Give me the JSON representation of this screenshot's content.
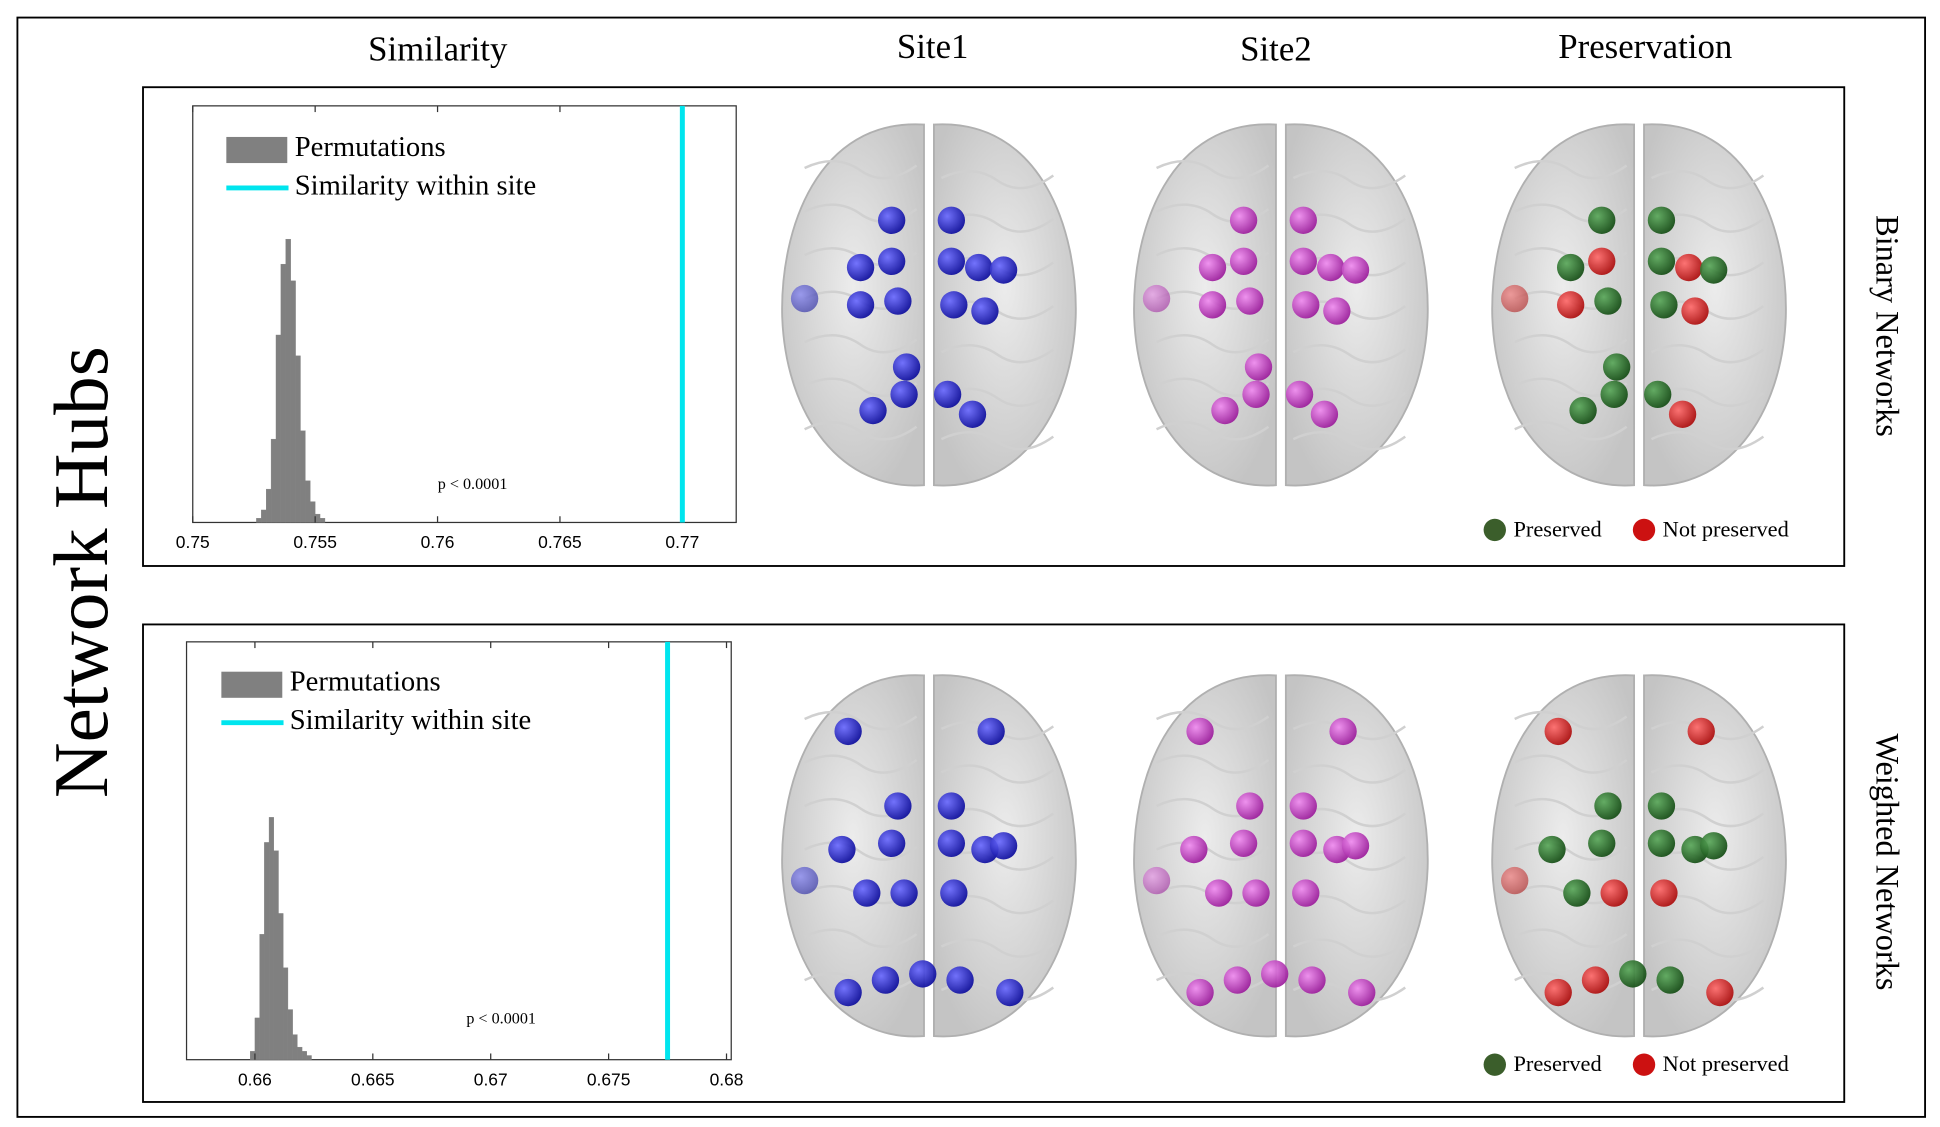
{
  "column_titles": [
    "Similarity",
    "Site1",
    "Site2",
    "Preservation"
  ],
  "row_title": "Network Hubs",
  "rows": [
    {
      "label": "Binary Networks",
      "legend": {
        "labels": [
          "Preserved",
          "Not preserved"
        ],
        "colors": [
          "#3b5e2b",
          "#cc1111"
        ]
      }
    },
    {
      "label": "Weighted Networks",
      "legend": {
        "labels": [
          "Preserved",
          "Not preserved"
        ],
        "colors": [
          "#3b5e2b",
          "#cc1111"
        ]
      }
    }
  ],
  "chart_data": [
    {
      "type": "histogram",
      "bins": [
        0.7526,
        0.7528,
        0.753,
        0.7532,
        0.7534,
        0.7536,
        0.7538,
        0.754,
        0.7542,
        0.7544,
        0.7546,
        0.7548,
        0.755,
        0.7552,
        0.7554,
        0.7556
      ],
      "counts": [
        1,
        3,
        8,
        20,
        45,
        62,
        68,
        58,
        40,
        22,
        10,
        5,
        2,
        1,
        0
      ],
      "color": "#808080",
      "xlim": [
        0.75,
        0.7722
      ],
      "ylim": [
        0,
        100
      ],
      "xticks": [
        0.75,
        0.755,
        0.76,
        0.765,
        0.77
      ],
      "vline": 0.77,
      "vline_color": "#00e5ee",
      "legend": [
        "Permutations",
        "Similarity within site"
      ],
      "annotation": "p < 0.0001"
    },
    {
      "type": "histogram",
      "bins": [
        0.6598,
        0.66,
        0.6602,
        0.6604,
        0.6606,
        0.6608,
        0.661,
        0.6612,
        0.6614,
        0.6616,
        0.6618,
        0.662,
        0.6622,
        0.6624,
        0.6626
      ],
      "counts": [
        2,
        10,
        30,
        52,
        58,
        50,
        35,
        22,
        12,
        6,
        3,
        2,
        1,
        0
      ],
      "color": "#808080",
      "xlim": [
        0.6571,
        0.6802
      ],
      "ylim": [
        0,
        100
      ],
      "xticks": [
        0.66,
        0.665,
        0.67,
        0.675,
        0.68
      ],
      "vline": 0.6775,
      "vline_color": "#00e5ee",
      "legend": [
        "Permutations",
        "Similarity within site"
      ],
      "annotation": "p < 0.0001"
    }
  ]
}
